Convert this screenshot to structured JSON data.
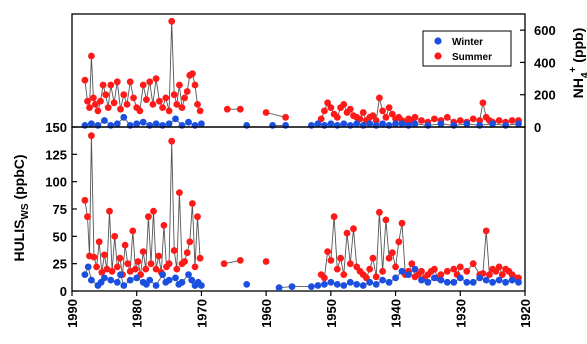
{
  "legend": {
    "winter_label": "Winter",
    "summer_label": "Summer",
    "winter_color": "#1a4fe0",
    "summer_color": "#ff1a1a"
  },
  "chart_data": [
    {
      "type": "scatter",
      "panel": "top",
      "ylabel": "NH4+ (ppb)",
      "ylabel_main": "NH",
      "ylabel_sub": "4",
      "ylabel_sup": "+",
      "ylabel_tail": " (ppb)",
      "xlim": [
        1990,
        1920
      ],
      "ylim": [
        0,
        700
      ],
      "yticks": [
        0,
        200,
        400,
        600
      ],
      "connect_line_color": "#555555",
      "series": [
        {
          "name": "Summer",
          "x": [
            1988.0,
            1987.6,
            1987.3,
            1987.0,
            1986.7,
            1986.4,
            1986.0,
            1985.6,
            1985.2,
            1984.8,
            1984.4,
            1984.0,
            1983.5,
            1983.0,
            1982.5,
            1982.0,
            1981.5,
            1981.0,
            1980.5,
            1980.0,
            1979.5,
            1979.0,
            1978.5,
            1978.0,
            1977.5,
            1977.0,
            1976.5,
            1976.0,
            1975.5,
            1975.0,
            1974.6,
            1974.2,
            1973.8,
            1973.4,
            1973.0,
            1972.6,
            1972.2,
            1971.8,
            1971.4,
            1971.0,
            1970.6,
            1970.2,
            1966.0,
            1964.0,
            1960.0,
            1957.0,
            1951.5,
            1951.0,
            1950.5,
            1950.0,
            1949.5,
            1949.0,
            1948.5,
            1948.0,
            1947.5,
            1947.0,
            1946.5,
            1946.0,
            1945.5,
            1945.0,
            1944.5,
            1944.0,
            1943.5,
            1943.0,
            1942.5,
            1942.0,
            1941.5,
            1941.0,
            1940.5,
            1940.0,
            1939.5,
            1939.0,
            1938.5,
            1938.0,
            1937.5,
            1937.0,
            1936.0,
            1935.0,
            1934.0,
            1933.0,
            1932.0,
            1931.0,
            1930.0,
            1929.0,
            1928.0,
            1927.0,
            1926.5,
            1926.0,
            1925.5,
            1925.0,
            1924.0,
            1923.0,
            1922.0,
            1921.0
          ],
          "y": [
            290,
            160,
            120,
            440,
            180,
            140,
            100,
            160,
            260,
            200,
            120,
            260,
            150,
            280,
            110,
            200,
            140,
            280,
            180,
            120,
            100,
            260,
            170,
            280,
            140,
            300,
            160,
            120,
            180,
            100,
            655,
            200,
            140,
            260,
            120,
            180,
            220,
            320,
            330,
            260,
            140,
            100,
            110,
            110,
            90,
            60,
            50,
            100,
            150,
            120,
            80,
            60,
            120,
            140,
            90,
            110,
            70,
            60,
            50,
            90,
            40,
            60,
            70,
            40,
            180,
            100,
            60,
            120,
            80,
            50,
            60,
            40,
            30,
            50,
            40,
            60,
            40,
            30,
            50,
            40,
            60,
            30,
            40,
            30,
            50,
            40,
            150,
            60,
            40,
            30,
            40,
            30,
            40,
            40
          ]
        },
        {
          "name": "Winter",
          "x": [
            1988.0,
            1987.0,
            1986.0,
            1985.0,
            1984.0,
            1983.0,
            1982.0,
            1981.0,
            1980.0,
            1979.0,
            1978.0,
            1977.0,
            1976.0,
            1975.0,
            1974.0,
            1973.0,
            1972.0,
            1971.0,
            1970.0,
            1963.0,
            1959.0,
            1957.0,
            1953.0,
            1952.0,
            1951.0,
            1950.0,
            1949.0,
            1948.0,
            1947.0,
            1946.0,
            1945.0,
            1944.0,
            1943.0,
            1942.0,
            1941.0,
            1940.0,
            1939.0,
            1938.0,
            1937.0,
            1935.0,
            1933.0,
            1931.0,
            1929.0,
            1927.0,
            1925.0,
            1923.0,
            1921.0
          ],
          "y": [
            10,
            20,
            10,
            40,
            10,
            20,
            60,
            10,
            20,
            30,
            10,
            20,
            10,
            20,
            50,
            10,
            30,
            10,
            20,
            10,
            10,
            10,
            10,
            20,
            10,
            20,
            10,
            20,
            10,
            20,
            10,
            20,
            10,
            20,
            10,
            20,
            20,
            10,
            20,
            10,
            20,
            10,
            20,
            10,
            20,
            10,
            20
          ]
        }
      ]
    },
    {
      "type": "scatter",
      "panel": "bottom",
      "ylabel": "HULISWS (ppbC)",
      "ylabel_main": "HULIS",
      "ylabel_sub": "WS",
      "ylabel_tail": " (ppbC)",
      "xlim": [
        1990,
        1920
      ],
      "ylim": [
        0,
        150
      ],
      "yticks": [
        0,
        25,
        50,
        75,
        100,
        125,
        150
      ],
      "xticks": [
        1990,
        1980,
        1970,
        1960,
        1950,
        1940,
        1930,
        1920
      ],
      "connect_line_color": "#555555",
      "series": [
        {
          "name": "Summer",
          "x": [
            1988.0,
            1987.6,
            1987.3,
            1987.0,
            1986.6,
            1986.2,
            1985.8,
            1985.4,
            1985.0,
            1984.6,
            1984.2,
            1983.8,
            1983.4,
            1983.0,
            1982.6,
            1982.2,
            1981.8,
            1981.4,
            1981.0,
            1980.6,
            1980.2,
            1979.8,
            1979.4,
            1979.0,
            1978.6,
            1978.2,
            1977.8,
            1977.4,
            1977.0,
            1976.6,
            1976.2,
            1975.8,
            1975.4,
            1975.0,
            1974.6,
            1974.2,
            1973.8,
            1973.4,
            1973.0,
            1972.6,
            1972.2,
            1971.8,
            1971.4,
            1971.0,
            1970.6,
            1970.2,
            1966.5,
            1964.0,
            1960.0,
            1951.5,
            1951.0,
            1950.5,
            1950.0,
            1949.5,
            1949.0,
            1948.5,
            1948.0,
            1947.5,
            1947.0,
            1946.5,
            1946.0,
            1945.5,
            1945.0,
            1944.5,
            1944.0,
            1943.5,
            1943.0,
            1942.5,
            1942.0,
            1941.5,
            1941.0,
            1940.5,
            1940.0,
            1939.5,
            1939.0,
            1938.5,
            1938.0,
            1937.5,
            1937.0,
            1936.5,
            1936.0,
            1935.5,
            1935.0,
            1934.5,
            1934.0,
            1933.5,
            1933.0,
            1932.0,
            1931.0,
            1930.5,
            1930.0,
            1929.0,
            1928.0,
            1927.0,
            1926.5,
            1926.0,
            1925.5,
            1925.0,
            1924.5,
            1924.0,
            1923.5,
            1923.0,
            1922.5,
            1922.0,
            1921.5,
            1921.0
          ],
          "y": [
            83,
            68,
            32,
            142,
            31,
            22,
            45,
            17,
            33,
            20,
            73,
            18,
            50,
            22,
            30,
            15,
            42,
            25,
            18,
            55,
            20,
            27,
            15,
            36,
            20,
            68,
            25,
            73,
            20,
            32,
            17,
            60,
            22,
            25,
            137,
            37,
            20,
            90,
            25,
            27,
            35,
            45,
            80,
            22,
            68,
            30,
            25,
            28,
            27,
            15,
            12,
            36,
            28,
            68,
            20,
            30,
            15,
            53,
            25,
            57,
            22,
            18,
            15,
            12,
            20,
            30,
            13,
            72,
            18,
            65,
            30,
            35,
            22,
            45,
            62,
            15,
            18,
            25,
            13,
            15,
            18,
            12,
            15,
            18,
            20,
            12,
            15,
            18,
            20,
            15,
            22,
            18,
            25,
            15,
            16,
            55,
            15,
            20,
            18,
            22,
            15,
            20,
            18,
            15,
            12,
            12
          ]
        },
        {
          "name": "Winter",
          "x": [
            1988.0,
            1987.5,
            1987.0,
            1986.0,
            1985.5,
            1985.0,
            1984.0,
            1983.0,
            1982.5,
            1982.0,
            1981.0,
            1980.0,
            1979.0,
            1978.5,
            1978.0,
            1977.0,
            1976.0,
            1975.5,
            1975.0,
            1974.0,
            1973.5,
            1973.0,
            1972.0,
            1971.5,
            1971.0,
            1970.5,
            1970.0,
            1963.0,
            1958.0,
            1956.0,
            1953.0,
            1952.0,
            1951.0,
            1950.0,
            1949.0,
            1948.0,
            1947.0,
            1946.0,
            1945.0,
            1944.0,
            1943.0,
            1942.0,
            1941.0,
            1940.0,
            1939.0,
            1938.0,
            1937.0,
            1936.0,
            1935.0,
            1934.0,
            1933.0,
            1932.0,
            1931.0,
            1930.0,
            1929.0,
            1928.0,
            1927.0,
            1926.0,
            1925.0,
            1924.0,
            1923.0,
            1922.0,
            1921.0
          ],
          "y": [
            15,
            22,
            10,
            5,
            8,
            12,
            10,
            8,
            15,
            5,
            10,
            12,
            8,
            6,
            10,
            5,
            15,
            8,
            10,
            12,
            6,
            8,
            15,
            10,
            5,
            8,
            5,
            6,
            3,
            4,
            4,
            5,
            6,
            8,
            6,
            5,
            8,
            6,
            5,
            8,
            6,
            10,
            8,
            12,
            18,
            15,
            20,
            10,
            8,
            12,
            10,
            8,
            8,
            12,
            8,
            8,
            12,
            10,
            8,
            10,
            8,
            10,
            8
          ]
        }
      ]
    }
  ]
}
